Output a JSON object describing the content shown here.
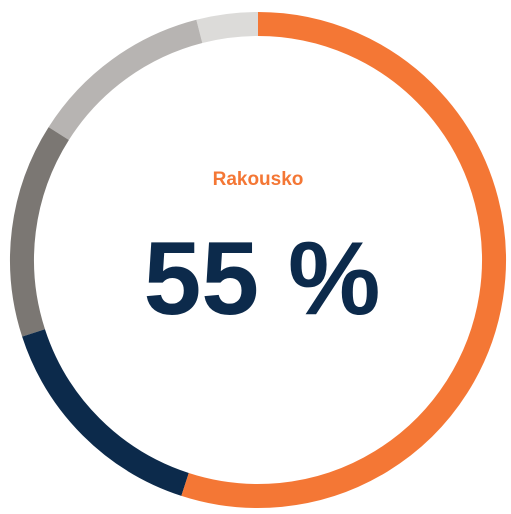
{
  "chart_data": {
    "type": "donut",
    "categories": [
      "Rakousko",
      null,
      null,
      null,
      null
    ],
    "values": [
      55,
      15,
      14,
      12,
      4
    ],
    "value_labels": [
      "55 %",
      null,
      null,
      null,
      null
    ],
    "colors": [
      "#f47735",
      "#0c2a4b",
      "#7b7773",
      "#b7b4b2",
      "#dcdbd9"
    ]
  }
}
